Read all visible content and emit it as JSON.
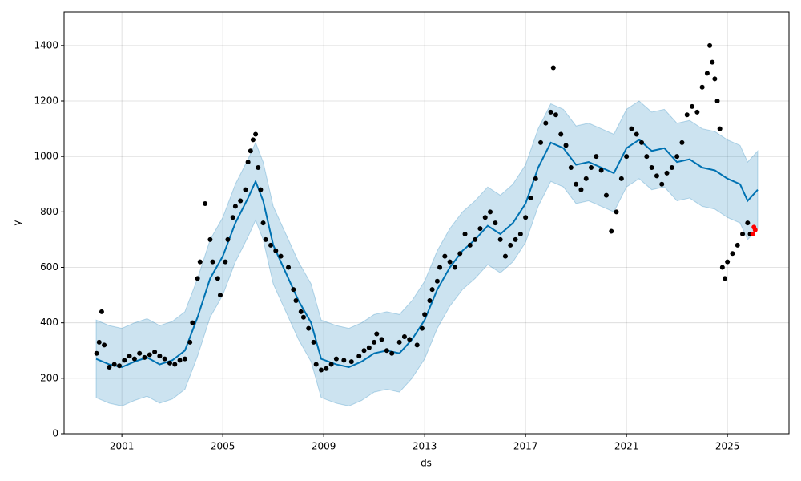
{
  "chart_data": {
    "type": "forecast",
    "xlabel": "ds",
    "ylabel": "y",
    "xlim": [
      1998.71,
      2027.44
    ],
    "xticks": [
      2001,
      2005,
      2009,
      2013,
      2017,
      2021,
      2025
    ],
    "ylim": [
      0,
      1521
    ],
    "yticks": [
      0,
      200,
      400,
      600,
      800,
      1000,
      1200,
      1400
    ],
    "grid": true,
    "observed": {
      "color": "#000000",
      "x": [
        2000.0,
        2000.1,
        2000.2,
        2000.3,
        2000.5,
        2000.7,
        2000.9,
        2001.1,
        2001.3,
        2001.5,
        2001.7,
        2001.9,
        2002.1,
        2002.3,
        2002.5,
        2002.7,
        2002.9,
        2003.1,
        2003.3,
        2003.5,
        2003.7,
        2003.8,
        2004.0,
        2004.1,
        2004.3,
        2004.5,
        2004.6,
        2004.8,
        2004.9,
        2005.1,
        2005.2,
        2005.4,
        2005.5,
        2005.7,
        2005.9,
        2006.0,
        2006.1,
        2006.2,
        2006.3,
        2006.4,
        2006.5,
        2006.6,
        2006.7,
        2006.9,
        2007.1,
        2007.3,
        2007.6,
        2007.8,
        2007.9,
        2008.1,
        2008.2,
        2008.4,
        2008.6,
        2008.7,
        2008.9,
        2009.1,
        2009.3,
        2009.5,
        2009.8,
        2010.1,
        2010.4,
        2010.6,
        2010.8,
        2011.0,
        2011.1,
        2011.3,
        2011.5,
        2011.7,
        2012.0,
        2012.2,
        2012.4,
        2012.7,
        2012.9,
        2013.0,
        2013.2,
        2013.3,
        2013.5,
        2013.6,
        2013.8,
        2014.0,
        2014.2,
        2014.4,
        2014.6,
        2014.8,
        2015.0,
        2015.2,
        2015.4,
        2015.6,
        2015.8,
        2016.0,
        2016.2,
        2016.4,
        2016.6,
        2016.8,
        2017.0,
        2017.2,
        2017.4,
        2017.6,
        2017.8,
        2018.0,
        2018.1,
        2018.2,
        2018.4,
        2018.6,
        2018.8,
        2019.0,
        2019.2,
        2019.4,
        2019.6,
        2019.8,
        2020.0,
        2020.2,
        2020.4,
        2020.6,
        2020.8,
        2021.0,
        2021.2,
        2021.4,
        2021.6,
        2021.8,
        2022.0,
        2022.2,
        2022.4,
        2022.6,
        2022.8,
        2023.0,
        2023.2,
        2023.4,
        2023.6,
        2023.8,
        2024.0,
        2024.2,
        2024.3,
        2024.4,
        2024.5,
        2024.6,
        2024.7,
        2024.8,
        2024.9,
        2025.0,
        2025.2,
        2025.4,
        2025.6,
        2025.8,
        2025.9
      ],
      "values": [
        290,
        330,
        440,
        320,
        240,
        250,
        245,
        265,
        280,
        270,
        290,
        275,
        285,
        295,
        280,
        270,
        255,
        250,
        265,
        270,
        330,
        400,
        560,
        620,
        830,
        700,
        620,
        560,
        500,
        620,
        700,
        780,
        820,
        840,
        880,
        980,
        1020,
        1060,
        1080,
        960,
        880,
        760,
        700,
        680,
        660,
        640,
        600,
        520,
        480,
        440,
        420,
        380,
        330,
        250,
        230,
        235,
        250,
        270,
        265,
        260,
        280,
        300,
        310,
        330,
        360,
        340,
        300,
        290,
        330,
        350,
        340,
        320,
        380,
        430,
        480,
        520,
        550,
        600,
        640,
        620,
        600,
        650,
        720,
        680,
        700,
        740,
        780,
        800,
        760,
        700,
        640,
        680,
        700,
        720,
        780,
        850,
        920,
        1050,
        1120,
        1160,
        1320,
        1150,
        1080,
        1040,
        960,
        900,
        880,
        920,
        960,
        1000,
        950,
        860,
        730,
        800,
        920,
        1000,
        1100,
        1080,
        1050,
        1000,
        960,
        930,
        900,
        940,
        960,
        1000,
        1050,
        1150,
        1180,
        1160,
        1250,
        1300,
        1400,
        1340,
        1280,
        1200,
        1100,
        600,
        560,
        620,
        650,
        680,
        720,
        760,
        720
      ]
    },
    "recent": {
      "color": "#ff0000",
      "x": [
        2026.0,
        2026.05,
        2026.1
      ],
      "values": [
        720,
        745,
        735
      ]
    },
    "forecast": {
      "color": "#0072b2",
      "band_color": "#0072b2",
      "x": [
        1999.98,
        2000.5,
        2001.0,
        2001.5,
        2002.0,
        2002.5,
        2003.0,
        2003.5,
        2004.0,
        2004.5,
        2005.0,
        2005.5,
        2006.0,
        2006.3,
        2006.6,
        2007.0,
        2007.5,
        2008.0,
        2008.5,
        2008.9,
        2009.5,
        2010.0,
        2010.5,
        2011.0,
        2011.5,
        2012.0,
        2012.5,
        2013.0,
        2013.5,
        2014.0,
        2014.5,
        2015.0,
        2015.5,
        2016.0,
        2016.5,
        2017.0,
        2017.5,
        2018.0,
        2018.5,
        2019.0,
        2019.5,
        2020.0,
        2020.5,
        2021.0,
        2021.5,
        2022.0,
        2022.5,
        2023.0,
        2023.5,
        2024.0,
        2024.5,
        2025.0,
        2025.5,
        2025.8,
        2026.2
      ],
      "yhat": [
        270,
        250,
        240,
        260,
        275,
        250,
        265,
        300,
        420,
        560,
        640,
        760,
        850,
        910,
        840,
        680,
        580,
        480,
        400,
        270,
        250,
        240,
        260,
        290,
        300,
        290,
        340,
        410,
        520,
        600,
        660,
        700,
        750,
        720,
        760,
        830,
        960,
        1050,
        1030,
        970,
        980,
        960,
        940,
        1030,
        1060,
        1020,
        1030,
        980,
        990,
        960,
        950,
        920,
        900,
        840,
        880
      ],
      "lower": [
        130,
        110,
        100,
        120,
        135,
        110,
        125,
        160,
        280,
        420,
        500,
        620,
        710,
        770,
        700,
        540,
        440,
        340,
        260,
        130,
        110,
        100,
        120,
        150,
        160,
        150,
        200,
        270,
        380,
        460,
        520,
        560,
        610,
        580,
        620,
        690,
        820,
        910,
        890,
        830,
        840,
        820,
        800,
        890,
        920,
        880,
        890,
        840,
        850,
        820,
        810,
        780,
        760,
        700,
        740
      ],
      "upper": [
        410,
        390,
        380,
        400,
        415,
        390,
        405,
        440,
        560,
        700,
        780,
        900,
        990,
        1050,
        980,
        820,
        720,
        620,
        540,
        410,
        390,
        380,
        400,
        430,
        440,
        430,
        480,
        550,
        660,
        740,
        800,
        840,
        890,
        860,
        900,
        970,
        1100,
        1190,
        1170,
        1110,
        1120,
        1100,
        1080,
        1170,
        1200,
        1160,
        1170,
        1120,
        1130,
        1100,
        1090,
        1060,
        1040,
        980,
        1020
      ]
    }
  }
}
